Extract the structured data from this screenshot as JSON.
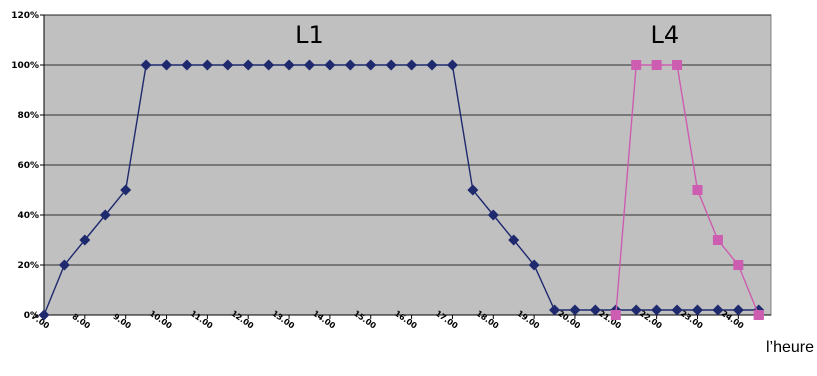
{
  "chart_data": {
    "type": "line",
    "title": "",
    "xlabel": "l’heure",
    "ylabel": "",
    "ylim": [
      0,
      1.2
    ],
    "yticks": [
      "0%",
      "20%",
      "40%",
      "60%",
      "80%",
      "100%",
      "120%"
    ],
    "yticks_values": [
      0,
      0.2,
      0.4,
      0.6,
      0.8,
      1.0,
      1.2
    ],
    "xticks": [
      "7.00",
      "8.00",
      "9.00",
      "10.00",
      "11.00",
      "12.00",
      "13.00",
      "14.00",
      "15.00",
      "16.00",
      "17.00",
      "18.00",
      "19.00",
      "20.00",
      "21.00",
      "22.00",
      "23.00",
      "24.00"
    ],
    "xticks_values": [
      7,
      8,
      9,
      10,
      11,
      12,
      13,
      14,
      15,
      16,
      17,
      18,
      19,
      20,
      21,
      22,
      23,
      24
    ],
    "grid": true,
    "background": "#c0c0c0",
    "annotations": [
      {
        "text": "L1",
        "x": 13.5,
        "y": 1.12
      },
      {
        "text": "L4",
        "x": 22.2,
        "y": 1.12
      }
    ],
    "series": [
      {
        "color": "#1f2a6e",
        "marker": "diamond",
        "x": [
          7.0,
          7.5,
          8.0,
          8.5,
          9.0,
          9.5,
          10.0,
          10.5,
          11.0,
          11.5,
          12.0,
          12.5,
          13.0,
          13.5,
          14.0,
          14.5,
          15.0,
          15.5,
          16.0,
          16.5,
          17.0,
          17.5,
          18.0,
          18.5,
          19.0,
          19.5,
          20.0,
          20.5,
          21.0,
          21.5,
          22.0,
          22.5,
          23.0,
          23.5,
          24.0,
          24.5
        ],
        "values": [
          0,
          0.2,
          0.3,
          0.4,
          0.5,
          1,
          1,
          1,
          1,
          1,
          1,
          1,
          1,
          1,
          1,
          1,
          1,
          1,
          1,
          1,
          1,
          0.5,
          0.4,
          0.3,
          0.2,
          0.02,
          0.02,
          0.02,
          0.02,
          0.02,
          0.02,
          0.02,
          0.02,
          0.02,
          0.02,
          0.02
        ]
      },
      {
        "color": "#cc5db0",
        "marker": "square",
        "x": [
          21.0,
          21.5,
          22.0,
          22.5,
          23.0,
          23.5,
          24.0,
          24.5
        ],
        "values": [
          0,
          1,
          1,
          1,
          0.5,
          0.3,
          0.2,
          0
        ]
      },
      {
        "color": "#cc5db0",
        "marker": "square",
        "x": [
          24.5
        ],
        "values": [
          0
        ]
      }
    ]
  }
}
